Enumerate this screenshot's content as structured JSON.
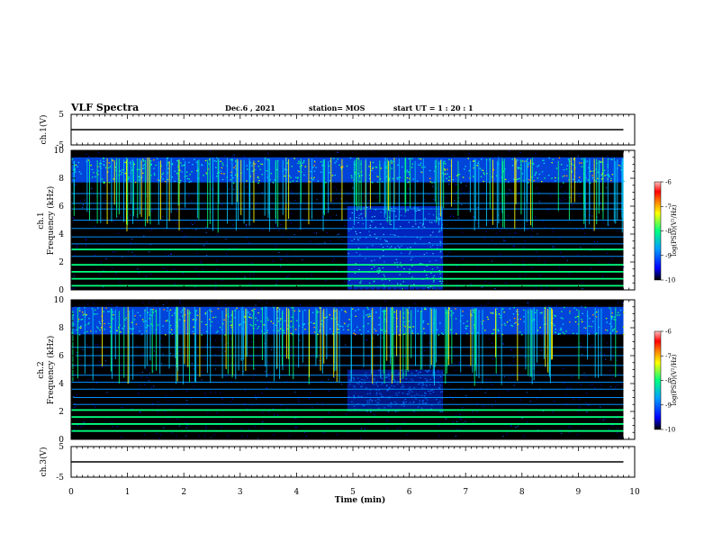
{
  "header": {
    "title": "VLF Spectra",
    "date": "Dec.6 , 2021",
    "station": "station= MOS",
    "start": "start  UT =   1 : 20 : 1"
  },
  "chart_data": {
    "type": "heatmap",
    "x_axis": {
      "label": "Time  (min)",
      "range": [
        0,
        10
      ],
      "ticks": [
        "0",
        "1",
        "2",
        "3",
        "4",
        "5",
        "6",
        "7",
        "8",
        "9",
        "10"
      ],
      "data_end_min": 9.8
    },
    "panels": [
      {
        "id": "ch1-wave",
        "ylabel": "ch.1(V)",
        "ylim": [
          -5,
          5
        ],
        "yticks": [
          "5",
          "-5"
        ],
        "trace_level": 0
      },
      {
        "id": "ch1-spec",
        "ylabel_line1": "ch.1",
        "ylabel_line2": "Frequency  (kHz)",
        "ylim": [
          0,
          10
        ],
        "yticks": [
          "0",
          "2",
          "4",
          "6",
          "8",
          "10"
        ],
        "lines_khz": [
          0.3,
          0.8,
          1.3,
          1.8,
          2.4,
          2.9,
          3.3,
          3.8,
          4.4,
          5.0,
          5.8,
          6.2,
          6.9
        ],
        "strong_lines_khz": [
          0.3,
          0.8,
          1.3,
          1.8,
          2.9
        ],
        "sferic_band_khz": [
          6.5,
          9.5
        ],
        "noise_burst_min": [
          4.9,
          6.6
        ],
        "noise_burst_khz": [
          0,
          6
        ]
      },
      {
        "id": "ch2-spec",
        "ylabel_line1": "ch.2",
        "ylabel_line2": "Frequency  (kHz)",
        "ylim": [
          0,
          10
        ],
        "yticks": [
          "0",
          "2",
          "4",
          "6",
          "8",
          "10"
        ],
        "lines_khz": [
          0.6,
          1.1,
          1.6,
          2.1,
          2.5,
          3.0,
          3.6,
          4.1,
          4.6,
          5.3,
          6.0,
          6.6
        ],
        "strong_lines_khz": [
          0.6,
          1.1,
          1.6,
          2.1
        ],
        "sferic_band_khz": [
          6.2,
          9.5
        ],
        "noise_burst_min": [
          4.9,
          6.6
        ],
        "noise_burst_khz": [
          2,
          5
        ]
      },
      {
        "id": "ch3-wave",
        "ylabel": "ch.3(V)",
        "ylim": [
          -5,
          5
        ],
        "yticks": [
          "5",
          "-5"
        ],
        "trace_level": 0
      }
    ],
    "colorbar": {
      "label": "log(PSD)(V²/Hz)",
      "range": [
        -10,
        -6
      ],
      "ticks": [
        "-6",
        "-7",
        "-8",
        "-9",
        "-10"
      ],
      "colors": [
        "#000000",
        "#0000ff",
        "#00a0ff",
        "#00ff80",
        "#ffff00",
        "#ff8000",
        "#ff0000",
        "#ffc0c0"
      ]
    }
  }
}
